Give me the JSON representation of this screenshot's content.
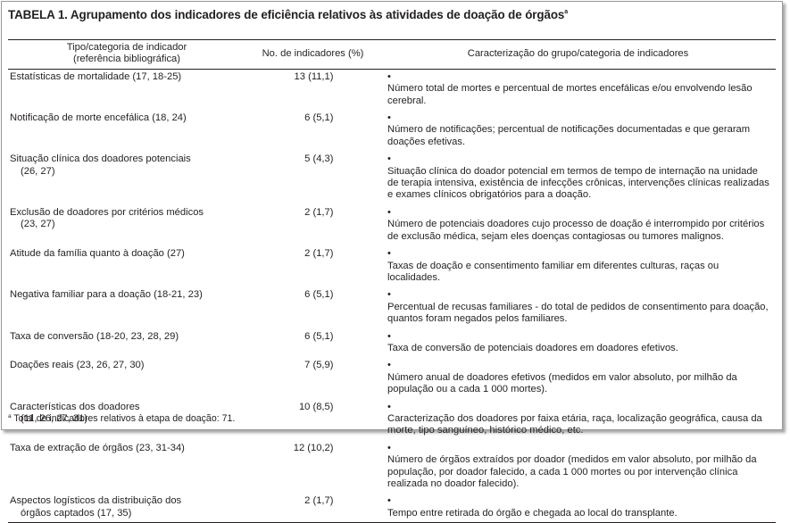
{
  "title": {
    "text": "TABELA 1. Agrupamento dos indicadores de eficiência relativos às atividades de doação de órgãos",
    "footnote_mark": "a"
  },
  "header": {
    "col1_line1": "Tipo/categoria de indicador",
    "col1_line2": "(referência bibliográfica)",
    "col2": "No. de indicadores (%)",
    "col3": "Caracterização do grupo/categoria de indicadores"
  },
  "bullet": "•",
  "rows": [
    {
      "category": "Estatísticas de mortalidade (17, 18-25)",
      "ref_line2": "",
      "count": "13 (11,1)",
      "description": "Número total de mortes e percentual de mortes encefálicas e/ou envolvendo lesão cerebral."
    },
    {
      "category": "Notificação de morte encefálica (18, 24)",
      "ref_line2": "",
      "count": "6 (5,1)",
      "description": "Número de notificações; percentual de notificações documentadas e que geraram doações efetivas."
    },
    {
      "category": "Situação clínica dos doadores potenciais",
      "ref_line2": "(26, 27)",
      "count": "5 (4,3)",
      "description": "Situação clínica do doador potencial em termos de tempo de internação na unidade de terapia intensiva, existência de infecções crônicas, intervenções clínicas realizadas e exames clínicos obrigatórios para a doação."
    },
    {
      "category": "Exclusão de doadores por critérios médicos",
      "ref_line2": "(23, 27)",
      "count": "2 (1,7)",
      "description": "Número de potenciais doadores cujo processo de doação é interrompido por critérios de exclusão médica, sejam eles doenças contagiosas ou tumores malignos."
    },
    {
      "category": "Atitude da família quanto à doação (27)",
      "ref_line2": "",
      "count": "2 (1,7)",
      "description": "Taxas de doação e consentimento familiar em diferentes culturas, raças ou localidades."
    },
    {
      "category": "Negativa familiar para a doação (18-21, 23)",
      "ref_line2": "",
      "count": "6 (5,1)",
      "description": "Percentual de recusas familiares - do total de pedidos de consentimento para doação, quantos foram negados pelos familiares."
    },
    {
      "category": "Taxa de conversão (18-20, 23, 28, 29)",
      "ref_line2": "",
      "count": "6 (5,1)",
      "description": "Taxa de conversão de potenciais doadores em doadores efetivos."
    },
    {
      "category": "Doações reais (23, 26, 27, 30)",
      "ref_line2": "",
      "count": "7 (5,9)",
      "description": "Número anual de doadores efetivos (medidos em valor absoluto, por milhão da população ou a cada 1 000 mortes)."
    },
    {
      "category": "Características dos doadores",
      "ref_line2": "(11, 26, 27, 31)",
      "count": "10 (8,5)",
      "description": "Caracterização dos doadores por faixa etária, raça, localização geográfica, causa da morte, tipo sanguíneo, histórico médico, etc."
    },
    {
      "category": "Taxa de extração de órgãos (23, 31-34)",
      "ref_line2": "",
      "count": "12 (10,2)",
      "description": "Número de órgãos extraídos por doador (medidos em valor absoluto, por milhão da população, por doador falecido, a cada 1 000 mortes ou por intervenção clínica realizada no doador falecido)."
    },
    {
      "category": "Aspectos logísticos da distribuição dos",
      "ref_line2": "órgãos captados (17, 35)",
      "count": "2 (1,7)",
      "description": "Tempo entre retirada do órgão e chegada ao local do transplante."
    }
  ],
  "footnote": {
    "mark": "a",
    "text": " Total de indicadores relativos à etapa de doação: 71."
  }
}
